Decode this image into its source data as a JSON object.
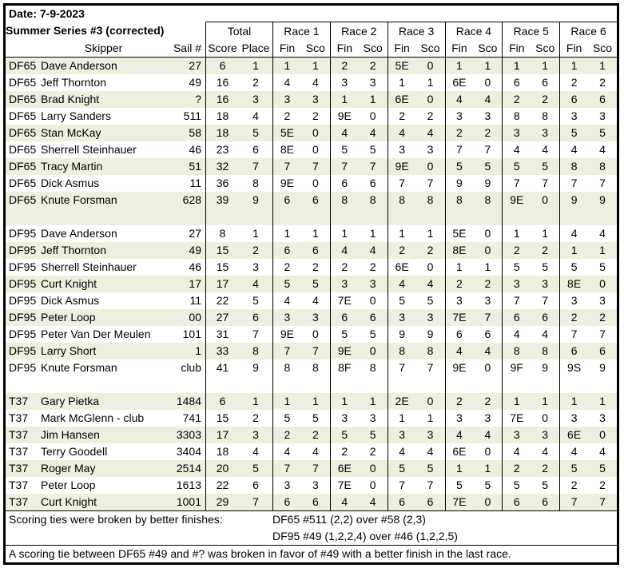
{
  "colors": {
    "band": "#EBF1DE",
    "border": "#000000",
    "background": "#FFFFFF",
    "text": "#000000"
  },
  "header": {
    "date": "Date: 7-9-2023",
    "series": "Summer Series #3 (corrected)",
    "skipper": "Skipper",
    "sail": "Sail #",
    "total": "Total",
    "score": "Score",
    "place": "Place",
    "fin": "Fin",
    "sco": "Sco",
    "races": [
      "Race 1",
      "Race 2",
      "Race 3",
      "Race 4",
      "Race 5",
      "Race 6"
    ]
  },
  "groups": [
    {
      "class": "DF65",
      "rows": [
        {
          "class": "DF65",
          "skipper": "Dave Anderson",
          "sail": "27",
          "score": "6",
          "place": "1",
          "races": [
            [
              "1",
              "1"
            ],
            [
              "2",
              "2"
            ],
            [
              "5E",
              "0"
            ],
            [
              "1",
              "1"
            ],
            [
              "1",
              "1"
            ],
            [
              "1",
              "1"
            ]
          ]
        },
        {
          "class": "DF65",
          "skipper": "Jeff Thornton",
          "sail": "49",
          "score": "16",
          "place": "2",
          "races": [
            [
              "4",
              "4"
            ],
            [
              "3",
              "3"
            ],
            [
              "1",
              "1"
            ],
            [
              "6E",
              "0"
            ],
            [
              "6",
              "6"
            ],
            [
              "2",
              "2"
            ]
          ]
        },
        {
          "class": "DF65",
          "skipper": "Brad Knight",
          "sail": "?",
          "score": "16",
          "place": "3",
          "races": [
            [
              "3",
              "3"
            ],
            [
              "1",
              "1"
            ],
            [
              "6E",
              "0"
            ],
            [
              "4",
              "4"
            ],
            [
              "2",
              "2"
            ],
            [
              "6",
              "6"
            ]
          ]
        },
        {
          "class": "DF65",
          "skipper": "Larry Sanders",
          "sail": "511",
          "score": "18",
          "place": "4",
          "races": [
            [
              "2",
              "2"
            ],
            [
              "9E",
              "0"
            ],
            [
              "2",
              "2"
            ],
            [
              "3",
              "3"
            ],
            [
              "8",
              "8"
            ],
            [
              "3",
              "3"
            ]
          ]
        },
        {
          "class": "DF65",
          "skipper": "Stan McKay",
          "sail": "58",
          "score": "18",
          "place": "5",
          "races": [
            [
              "5E",
              "0"
            ],
            [
              "4",
              "4"
            ],
            [
              "4",
              "4"
            ],
            [
              "2",
              "2"
            ],
            [
              "3",
              "3"
            ],
            [
              "5",
              "5"
            ]
          ]
        },
        {
          "class": "DF65",
          "skipper": "Sherrell Steinhauer",
          "sail": "46",
          "score": "23",
          "place": "6",
          "races": [
            [
              "8E",
              "0"
            ],
            [
              "5",
              "5"
            ],
            [
              "3",
              "3"
            ],
            [
              "7",
              "7"
            ],
            [
              "4",
              "4"
            ],
            [
              "4",
              "4"
            ]
          ]
        },
        {
          "class": "DF65",
          "skipper": "Tracy Martin",
          "sail": "51",
          "score": "32",
          "place": "7",
          "races": [
            [
              "7",
              "7"
            ],
            [
              "7",
              "7"
            ],
            [
              "9E",
              "0"
            ],
            [
              "5",
              "5"
            ],
            [
              "5",
              "5"
            ],
            [
              "8",
              "8"
            ]
          ]
        },
        {
          "class": "DF65",
          "skipper": "Dick Asmus",
          "sail": "11",
          "score": "36",
          "place": "8",
          "races": [
            [
              "9E",
              "0"
            ],
            [
              "6",
              "6"
            ],
            [
              "7",
              "7"
            ],
            [
              "9",
              "9"
            ],
            [
              "7",
              "7"
            ],
            [
              "7",
              "7"
            ]
          ]
        },
        {
          "class": "DF65",
          "skipper": "Knute Forsman",
          "sail": "628",
          "score": "39",
          "place": "9",
          "races": [
            [
              "6",
              "6"
            ],
            [
              "8",
              "8"
            ],
            [
              "8",
              "8"
            ],
            [
              "8",
              "8"
            ],
            [
              "9E",
              "0"
            ],
            [
              "9",
              "9"
            ]
          ]
        }
      ]
    },
    {
      "class": "DF95",
      "rows": [
        {
          "class": "DF95",
          "skipper": "Dave Anderson",
          "sail": "27",
          "score": "8",
          "place": "1",
          "races": [
            [
              "1",
              "1"
            ],
            [
              "1",
              "1"
            ],
            [
              "1",
              "1"
            ],
            [
              "5E",
              "0"
            ],
            [
              "1",
              "1"
            ],
            [
              "4",
              "4"
            ]
          ]
        },
        {
          "class": "DF95",
          "skipper": "Jeff Thornton",
          "sail": "49",
          "score": "15",
          "place": "2",
          "races": [
            [
              "6",
              "6"
            ],
            [
              "4",
              "4"
            ],
            [
              "2",
              "2"
            ],
            [
              "8E",
              "0"
            ],
            [
              "2",
              "2"
            ],
            [
              "1",
              "1"
            ]
          ]
        },
        {
          "class": "DF95",
          "skipper": "Sherrell Steinhauer",
          "sail": "46",
          "score": "15",
          "place": "3",
          "races": [
            [
              "2",
              "2"
            ],
            [
              "2",
              "2"
            ],
            [
              "6E",
              "0"
            ],
            [
              "1",
              "1"
            ],
            [
              "5",
              "5"
            ],
            [
              "5",
              "5"
            ]
          ]
        },
        {
          "class": "DF95",
          "skipper": "Curt Knight",
          "sail": "17",
          "score": "17",
          "place": "4",
          "races": [
            [
              "5",
              "5"
            ],
            [
              "3",
              "3"
            ],
            [
              "4",
              "4"
            ],
            [
              "2",
              "2"
            ],
            [
              "3",
              "3"
            ],
            [
              "8E",
              "0"
            ]
          ]
        },
        {
          "class": "DF95",
          "skipper": "Dick Asmus",
          "sail": "11",
          "score": "22",
          "place": "5",
          "races": [
            [
              "4",
              "4"
            ],
            [
              "7E",
              "0"
            ],
            [
              "5",
              "5"
            ],
            [
              "3",
              "3"
            ],
            [
              "7",
              "7"
            ],
            [
              "3",
              "3"
            ]
          ]
        },
        {
          "class": "DF95",
          "skipper": "Peter Loop",
          "sail": "00",
          "score": "27",
          "place": "6",
          "races": [
            [
              "3",
              "3"
            ],
            [
              "6",
              "6"
            ],
            [
              "3",
              "3"
            ],
            [
              "7E",
              "7"
            ],
            [
              "6",
              "6"
            ],
            [
              "2",
              "2"
            ]
          ]
        },
        {
          "class": "DF95",
          "skipper": "Peter Van Der Meulen",
          "sail": "101",
          "score": "31",
          "place": "7",
          "races": [
            [
              "9E",
              "0"
            ],
            [
              "5",
              "5"
            ],
            [
              "9",
              "9"
            ],
            [
              "6",
              "6"
            ],
            [
              "4",
              "4"
            ],
            [
              "7",
              "7"
            ]
          ]
        },
        {
          "class": "DF95",
          "skipper": "Larry Short",
          "sail": "1",
          "score": "33",
          "place": "8",
          "races": [
            [
              "7",
              "7"
            ],
            [
              "9E",
              "0"
            ],
            [
              "8",
              "8"
            ],
            [
              "4",
              "4"
            ],
            [
              "8",
              "8"
            ],
            [
              "6",
              "6"
            ]
          ]
        },
        {
          "class": "DF95",
          "skipper": "Knute Forsman",
          "sail": "club",
          "score": "41",
          "place": "9",
          "races": [
            [
              "8",
              "8"
            ],
            [
              "8F",
              "8"
            ],
            [
              "7",
              "7"
            ],
            [
              "9E",
              "0"
            ],
            [
              "9F",
              "9"
            ],
            [
              "9S",
              "9"
            ]
          ]
        }
      ]
    },
    {
      "class": "T37",
      "rows": [
        {
          "class": "T37",
          "skipper": "Gary Pietka",
          "sail": "1484",
          "score": "6",
          "place": "1",
          "races": [
            [
              "1",
              "1"
            ],
            [
              "1",
              "1"
            ],
            [
              "2E",
              "0"
            ],
            [
              "2",
              "2"
            ],
            [
              "1",
              "1"
            ],
            [
              "1",
              "1"
            ]
          ]
        },
        {
          "class": "T37",
          "skipper": "Mark McGlenn - club",
          "sail": "741",
          "score": "15",
          "place": "2",
          "races": [
            [
              "5",
              "5"
            ],
            [
              "3",
              "3"
            ],
            [
              "1",
              "1"
            ],
            [
              "3",
              "3"
            ],
            [
              "7E",
              "0"
            ],
            [
              "3",
              "3"
            ]
          ]
        },
        {
          "class": "T37",
          "skipper": "Jim Hansen",
          "sail": "3303",
          "score": "17",
          "place": "3",
          "races": [
            [
              "2",
              "2"
            ],
            [
              "5",
              "5"
            ],
            [
              "3",
              "3"
            ],
            [
              "4",
              "4"
            ],
            [
              "3",
              "3"
            ],
            [
              "6E",
              "0"
            ]
          ]
        },
        {
          "class": "T37",
          "skipper": "Terry Goodell",
          "sail": "3404",
          "score": "18",
          "place": "4",
          "races": [
            [
              "4",
              "4"
            ],
            [
              "2",
              "2"
            ],
            [
              "4",
              "4"
            ],
            [
              "6E",
              "0"
            ],
            [
              "4",
              "4"
            ],
            [
              "4",
              "4"
            ]
          ]
        },
        {
          "class": "T37",
          "skipper": "Roger May",
          "sail": "2514",
          "score": "20",
          "place": "5",
          "races": [
            [
              "7",
              "7"
            ],
            [
              "6E",
              "0"
            ],
            [
              "5",
              "5"
            ],
            [
              "1",
              "1"
            ],
            [
              "2",
              "2"
            ],
            [
              "5",
              "5"
            ]
          ]
        },
        {
          "class": "T37",
          "skipper": "Peter Loop",
          "sail": "1613",
          "score": "22",
          "place": "6",
          "races": [
            [
              "3",
              "3"
            ],
            [
              "7E",
              "0"
            ],
            [
              "7",
              "7"
            ],
            [
              "5",
              "5"
            ],
            [
              "5",
              "5"
            ],
            [
              "2",
              "2"
            ]
          ]
        },
        {
          "class": "T37",
          "skipper": "Curt Knight",
          "sail": "1001",
          "score": "29",
          "place": "7",
          "races": [
            [
              "6",
              "6"
            ],
            [
              "4",
              "4"
            ],
            [
              "6",
              "6"
            ],
            [
              "7E",
              "0"
            ],
            [
              "6",
              "6"
            ],
            [
              "7",
              "7"
            ]
          ]
        }
      ]
    }
  ],
  "footer": {
    "tie_label": "Scoring ties were broken by better finishes:",
    "tie1": "DF65 #511 (2,2) over #58 (2,3)",
    "tie2": "DF95 #49 (1,2,2,4) over #46 (1,2,2,5)",
    "note": "A scoring tie between DF65 #49 and #? was broken in favor of #49 with a better finish in the last race."
  }
}
